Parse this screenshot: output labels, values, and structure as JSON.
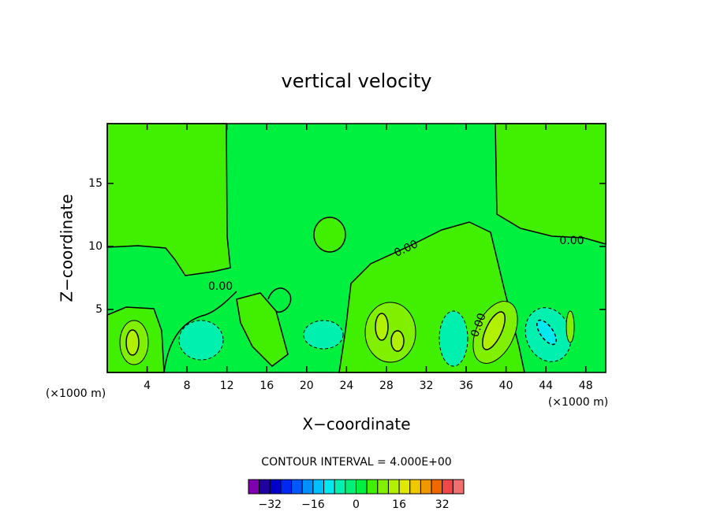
{
  "chart_data": {
    "type": "contour",
    "title": "vertical velocity",
    "x_label": "X−coordinate",
    "y_label": "Z−coordinate",
    "x_unit_left": "(×1000 m)",
    "x_unit_right": "(×1000 m)",
    "xlim": [
      0,
      50
    ],
    "ylim": [
      0,
      19.75
    ],
    "xticks": [
      4,
      8,
      12,
      16,
      20,
      24,
      28,
      32,
      36,
      40,
      44,
      48
    ],
    "yticks": [
      5,
      10,
      15
    ],
    "contour_labels": [
      "0.00",
      "0.00",
      "0.00",
      "0.00"
    ],
    "colorbar": {
      "title": "CONTOUR INTERVAL = 4.000E+00",
      "levels": [
        -40,
        -36,
        -32,
        -28,
        -24,
        -20,
        -16,
        -12,
        -8,
        -4,
        0,
        4,
        8,
        12,
        16,
        20,
        24,
        28,
        32,
        36,
        40
      ],
      "colors": [
        "#8000b0",
        "#2000a0",
        "#0000c8",
        "#0028f0",
        "#0058ff",
        "#0090ff",
        "#00c0ff",
        "#00e8f0",
        "#00f0b0",
        "#00f078",
        "#00f040",
        "#40f000",
        "#80f000",
        "#b0f000",
        "#e0e800",
        "#f0c800",
        "#f09800",
        "#f06800",
        "#f04848",
        "#f07070"
      ],
      "ticks": [
        {
          "value": -32,
          "label": "−32"
        },
        {
          "value": -16,
          "label": "−16"
        },
        0,
        16,
        32
      ]
    }
  }
}
